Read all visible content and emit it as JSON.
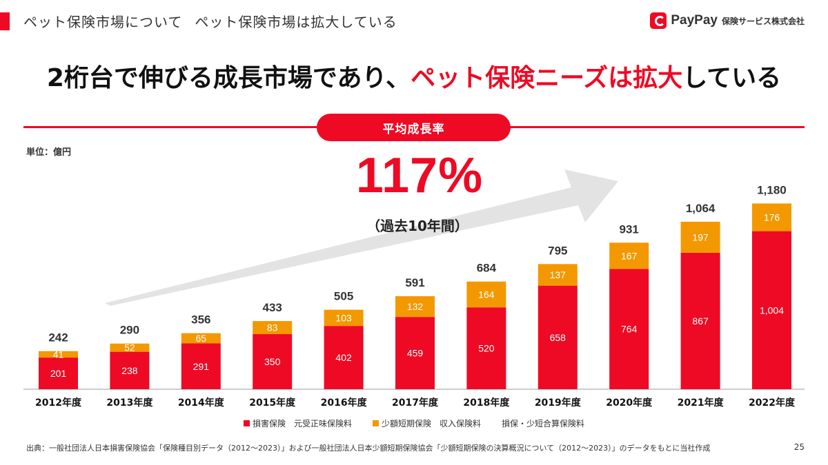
{
  "header": {
    "title": "ペット保険市場について",
    "subtitle": "ペット保険市場は拡大している"
  },
  "logo": {
    "brand": "PayPay",
    "company": "保険サービス株式会社",
    "icon": "paypay-logo-icon"
  },
  "headline": {
    "part1": "2桁台で伸びる成長市場であり、",
    "highlight": "ペット保険ニーズは拡大",
    "part2": "している"
  },
  "callout": {
    "pill_label": "平均成長率",
    "rate": "117%",
    "period": "（過去10年間）"
  },
  "colors": {
    "accent": "#ee0a24",
    "series_primary": "#ee0a24",
    "series_secondary": "#f39800",
    "arrow": "#e3e3e3"
  },
  "chart_data": {
    "type": "bar",
    "stacked": true,
    "unit": "単位：億円",
    "categories": [
      "2012年度",
      "2013年度",
      "2014年度",
      "2015年度",
      "2016年度",
      "2017年度",
      "2018年度",
      "2019年度",
      "2020年度",
      "2021年度",
      "2022年度"
    ],
    "series": [
      {
        "name": "損害保険　元受正味保険料",
        "values": [
          201,
          238,
          291,
          350,
          402,
          459,
          520,
          658,
          764,
          867,
          1004
        ]
      },
      {
        "name": "少額短期保険　収入保険料",
        "values": [
          41,
          52,
          65,
          83,
          103,
          132,
          164,
          137,
          167,
          197,
          176
        ]
      }
    ],
    "totals": [
      "242",
      "290",
      "356",
      "433",
      "505",
      "591",
      "684",
      "795",
      "931",
      "1,064",
      "1,180"
    ],
    "value_labels": [
      [
        "201",
        "238",
        "291",
        "350",
        "402",
        "459",
        "520",
        "658",
        "764",
        "867",
        "1,004"
      ],
      [
        "41",
        "52",
        "65",
        "83",
        "103",
        "132",
        "164",
        "137",
        "167",
        "197",
        "176"
      ]
    ],
    "ylim": [
      0,
      1220
    ],
    "legend_extra": "損保・少短合算保険料",
    "legend_position": "bottom",
    "grid": false
  },
  "footer": {
    "source": "出典：一般社団法人日本損害保険協会「保険種目別データ（2012～2023）」および一般社団法人日本少額短期保険協会「少額短期保険の決算概況について（2012～2023）」のデータをもとに当社作成",
    "page": "25"
  }
}
